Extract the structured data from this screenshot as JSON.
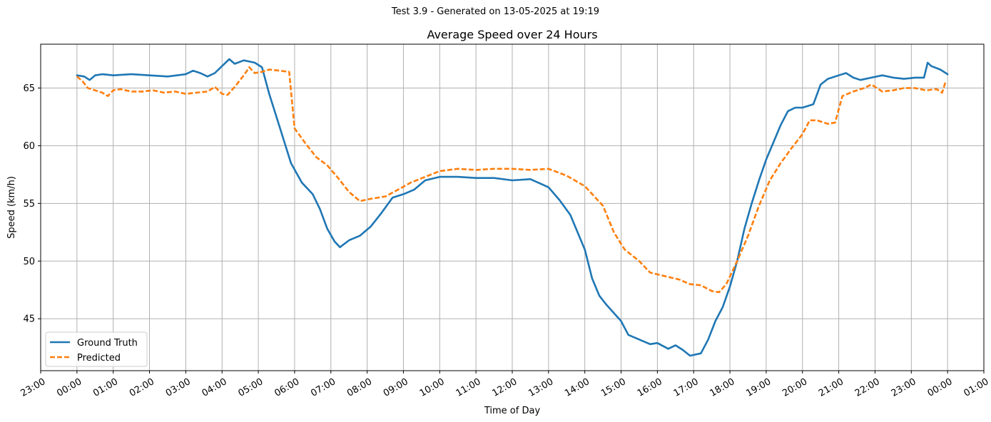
{
  "figure": {
    "suptitle": "Test 3.9 - Generated on 13-05-2025 at 19:19"
  },
  "chart_data": {
    "type": "line",
    "title": "Average Speed over 24 Hours",
    "xlabel": "Time of Day",
    "ylabel": "Speed (km/h)",
    "x_unit": "hours after 00:00 (first 00:00 tick)",
    "xlim": [
      -1,
      25
    ],
    "ylim": [
      40.5,
      68.8
    ],
    "x_ticks": [
      {
        "value": -1,
        "label": "23:00"
      },
      {
        "value": 0,
        "label": "00:00"
      },
      {
        "value": 1,
        "label": "01:00"
      },
      {
        "value": 2,
        "label": "02:00"
      },
      {
        "value": 3,
        "label": "03:00"
      },
      {
        "value": 4,
        "label": "04:00"
      },
      {
        "value": 5,
        "label": "05:00"
      },
      {
        "value": 6,
        "label": "06:00"
      },
      {
        "value": 7,
        "label": "07:00"
      },
      {
        "value": 8,
        "label": "08:00"
      },
      {
        "value": 9,
        "label": "09:00"
      },
      {
        "value": 10,
        "label": "10:00"
      },
      {
        "value": 11,
        "label": "11:00"
      },
      {
        "value": 12,
        "label": "12:00"
      },
      {
        "value": 13,
        "label": "13:00"
      },
      {
        "value": 14,
        "label": "14:00"
      },
      {
        "value": 15,
        "label": "15:00"
      },
      {
        "value": 16,
        "label": "16:00"
      },
      {
        "value": 17,
        "label": "17:00"
      },
      {
        "value": 18,
        "label": "18:00"
      },
      {
        "value": 19,
        "label": "19:00"
      },
      {
        "value": 20,
        "label": "20:00"
      },
      {
        "value": 21,
        "label": "21:00"
      },
      {
        "value": 22,
        "label": "22:00"
      },
      {
        "value": 23,
        "label": "23:00"
      },
      {
        "value": 24,
        "label": "00:00"
      },
      {
        "value": 25,
        "label": "01:00"
      }
    ],
    "y_ticks": [
      {
        "value": 45,
        "label": "45"
      },
      {
        "value": 50,
        "label": "50"
      },
      {
        "value": 55,
        "label": "55"
      },
      {
        "value": 60,
        "label": "60"
      },
      {
        "value": 65,
        "label": "65"
      }
    ],
    "grid": true,
    "legend_position": "lower-left",
    "series": [
      {
        "name": "Ground Truth",
        "color": "#1f77b4",
        "style": "solid",
        "points": [
          [
            0,
            66.1
          ],
          [
            0.2,
            66.0
          ],
          [
            0.35,
            65.7
          ],
          [
            0.5,
            66.1
          ],
          [
            0.7,
            66.2
          ],
          [
            1.0,
            66.1
          ],
          [
            1.5,
            66.2
          ],
          [
            2.0,
            66.1
          ],
          [
            2.5,
            66.0
          ],
          [
            3.0,
            66.2
          ],
          [
            3.2,
            66.5
          ],
          [
            3.4,
            66.3
          ],
          [
            3.6,
            66.0
          ],
          [
            3.8,
            66.3
          ],
          [
            4.0,
            66.9
          ],
          [
            4.2,
            67.5
          ],
          [
            4.35,
            67.1
          ],
          [
            4.6,
            67.4
          ],
          [
            4.9,
            67.2
          ],
          [
            5.1,
            66.8
          ],
          [
            5.3,
            64.5
          ],
          [
            5.6,
            61.5
          ],
          [
            5.9,
            58.5
          ],
          [
            6.2,
            56.8
          ],
          [
            6.5,
            55.8
          ],
          [
            6.7,
            54.5
          ],
          [
            6.9,
            52.8
          ],
          [
            7.1,
            51.7
          ],
          [
            7.25,
            51.2
          ],
          [
            7.5,
            51.8
          ],
          [
            7.8,
            52.2
          ],
          [
            8.1,
            53.0
          ],
          [
            8.4,
            54.2
          ],
          [
            8.7,
            55.5
          ],
          [
            9.0,
            55.8
          ],
          [
            9.3,
            56.2
          ],
          [
            9.6,
            57.0
          ],
          [
            10.0,
            57.3
          ],
          [
            10.5,
            57.3
          ],
          [
            11.0,
            57.2
          ],
          [
            11.5,
            57.2
          ],
          [
            12.0,
            57.0
          ],
          [
            12.5,
            57.1
          ],
          [
            13.0,
            56.4
          ],
          [
            13.3,
            55.3
          ],
          [
            13.6,
            54.0
          ],
          [
            13.8,
            52.5
          ],
          [
            14.0,
            51.0
          ],
          [
            14.2,
            48.5
          ],
          [
            14.4,
            47.0
          ],
          [
            14.6,
            46.2
          ],
          [
            14.8,
            45.5
          ],
          [
            15.0,
            44.8
          ],
          [
            15.2,
            43.6
          ],
          [
            15.5,
            43.2
          ],
          [
            15.8,
            42.8
          ],
          [
            16.0,
            42.9
          ],
          [
            16.3,
            42.4
          ],
          [
            16.5,
            42.7
          ],
          [
            16.7,
            42.3
          ],
          [
            16.9,
            41.8
          ],
          [
            17.2,
            42.0
          ],
          [
            17.4,
            43.2
          ],
          [
            17.6,
            44.8
          ],
          [
            17.8,
            46.0
          ],
          [
            18.0,
            47.8
          ],
          [
            18.2,
            50.0
          ],
          [
            18.4,
            52.8
          ],
          [
            18.6,
            55.0
          ],
          [
            18.8,
            57.0
          ],
          [
            19.0,
            58.8
          ],
          [
            19.2,
            60.3
          ],
          [
            19.4,
            61.8
          ],
          [
            19.6,
            63.0
          ],
          [
            19.8,
            63.3
          ],
          [
            20.0,
            63.3
          ],
          [
            20.3,
            63.6
          ],
          [
            20.5,
            65.3
          ],
          [
            20.7,
            65.8
          ],
          [
            21.0,
            66.1
          ],
          [
            21.2,
            66.3
          ],
          [
            21.4,
            65.9
          ],
          [
            21.6,
            65.7
          ],
          [
            21.9,
            65.9
          ],
          [
            22.2,
            66.1
          ],
          [
            22.5,
            65.9
          ],
          [
            22.8,
            65.8
          ],
          [
            23.1,
            65.9
          ],
          [
            23.35,
            65.9
          ],
          [
            23.45,
            67.2
          ],
          [
            23.55,
            66.9
          ],
          [
            23.8,
            66.6
          ],
          [
            24.0,
            66.2
          ]
        ]
      },
      {
        "name": "Predicted",
        "color": "#ff7f0e",
        "style": "dashed",
        "points": [
          [
            0,
            66.0
          ],
          [
            0.15,
            65.6
          ],
          [
            0.3,
            65.0
          ],
          [
            0.5,
            64.8
          ],
          [
            0.7,
            64.6
          ],
          [
            0.85,
            64.3
          ],
          [
            1.0,
            64.8
          ],
          [
            1.2,
            64.9
          ],
          [
            1.5,
            64.7
          ],
          [
            1.8,
            64.7
          ],
          [
            2.1,
            64.8
          ],
          [
            2.4,
            64.6
          ],
          [
            2.7,
            64.7
          ],
          [
            3.0,
            64.5
          ],
          [
            3.3,
            64.6
          ],
          [
            3.6,
            64.7
          ],
          [
            3.8,
            65.1
          ],
          [
            4.0,
            64.5
          ],
          [
            4.15,
            64.4
          ],
          [
            4.35,
            65.1
          ],
          [
            4.6,
            66.1
          ],
          [
            4.75,
            66.8
          ],
          [
            4.9,
            66.3
          ],
          [
            5.1,
            66.4
          ],
          [
            5.3,
            66.6
          ],
          [
            5.6,
            66.5
          ],
          [
            5.85,
            66.4
          ],
          [
            6.0,
            61.5
          ],
          [
            6.3,
            60.2
          ],
          [
            6.6,
            59.0
          ],
          [
            6.9,
            58.3
          ],
          [
            7.2,
            57.2
          ],
          [
            7.5,
            56.0
          ],
          [
            7.8,
            55.2
          ],
          [
            8.1,
            55.4
          ],
          [
            8.5,
            55.6
          ],
          [
            8.8,
            56.1
          ],
          [
            9.2,
            56.8
          ],
          [
            9.6,
            57.3
          ],
          [
            10.0,
            57.8
          ],
          [
            10.5,
            58.0
          ],
          [
            11.0,
            57.9
          ],
          [
            11.5,
            58.0
          ],
          [
            12.0,
            58.0
          ],
          [
            12.5,
            57.9
          ],
          [
            13.0,
            58.0
          ],
          [
            13.5,
            57.4
          ],
          [
            14.0,
            56.5
          ],
          [
            14.5,
            54.8
          ],
          [
            14.8,
            52.5
          ],
          [
            15.1,
            51.0
          ],
          [
            15.5,
            50.0
          ],
          [
            15.8,
            49.0
          ],
          [
            16.2,
            48.7
          ],
          [
            16.6,
            48.4
          ],
          [
            16.9,
            48.0
          ],
          [
            17.2,
            47.9
          ],
          [
            17.5,
            47.4
          ],
          [
            17.7,
            47.3
          ],
          [
            17.9,
            48.0
          ],
          [
            18.2,
            50.0
          ],
          [
            18.5,
            52.2
          ],
          [
            18.8,
            54.8
          ],
          [
            19.1,
            57.0
          ],
          [
            19.4,
            58.5
          ],
          [
            19.7,
            59.8
          ],
          [
            20.0,
            61.0
          ],
          [
            20.2,
            62.2
          ],
          [
            20.4,
            62.2
          ],
          [
            20.7,
            61.9
          ],
          [
            20.9,
            62.0
          ],
          [
            21.1,
            64.3
          ],
          [
            21.4,
            64.7
          ],
          [
            21.7,
            65.0
          ],
          [
            21.9,
            65.3
          ],
          [
            22.2,
            64.7
          ],
          [
            22.5,
            64.8
          ],
          [
            22.8,
            65.0
          ],
          [
            23.1,
            65.0
          ],
          [
            23.4,
            64.8
          ],
          [
            23.7,
            64.9
          ],
          [
            23.85,
            64.6
          ],
          [
            23.95,
            65.6
          ]
        ]
      }
    ]
  }
}
